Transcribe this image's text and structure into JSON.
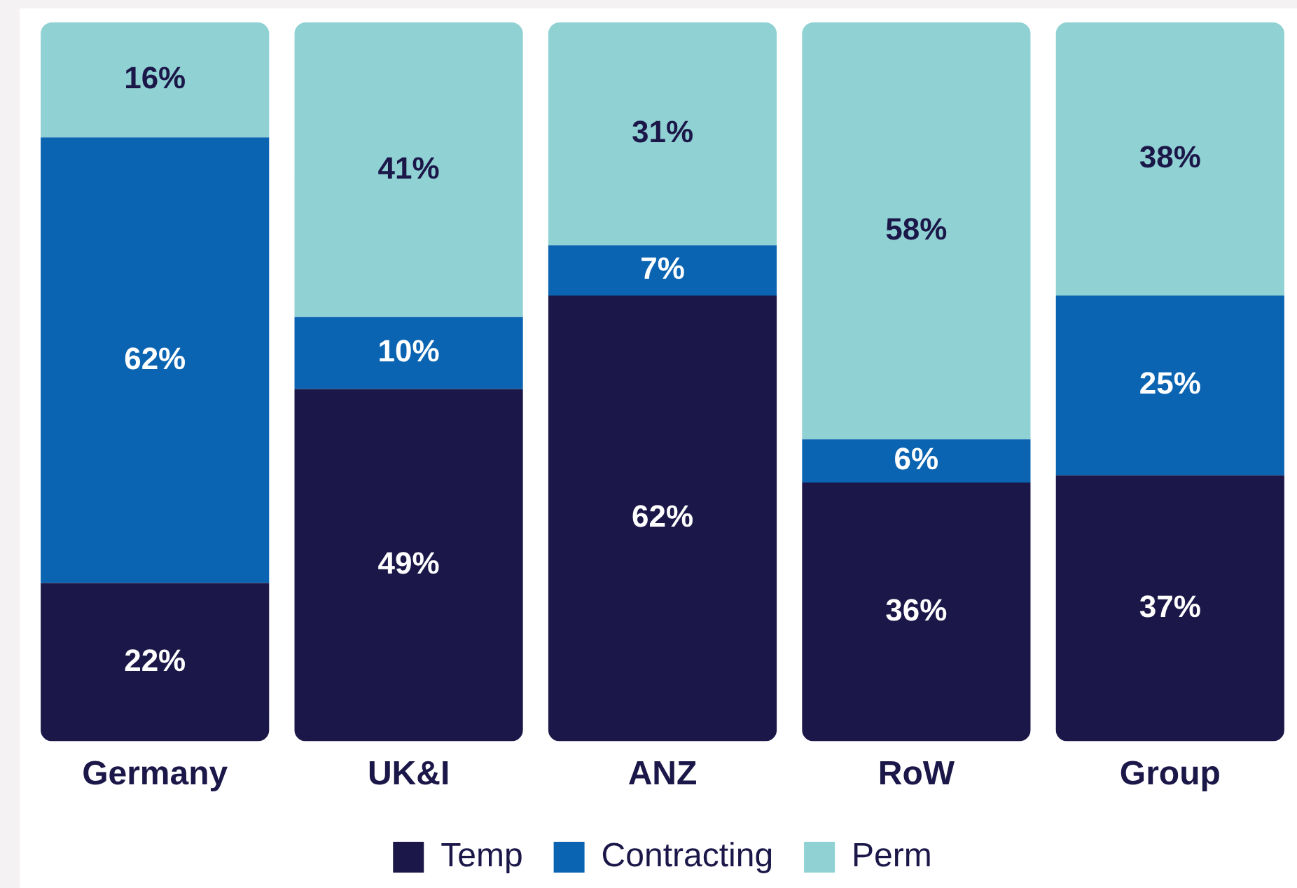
{
  "chart_data": {
    "type": "bar",
    "stacked": true,
    "legend": "bottom",
    "grid": false,
    "categories": [
      "Germany",
      "UK&I",
      "ANZ",
      "RoW",
      "Group"
    ],
    "series": [
      {
        "name": "Temp",
        "color": "#1b1748",
        "values": [
          22,
          49,
          62,
          36,
          37
        ],
        "value_labels": [
          "22%",
          "49%",
          "62%",
          "36%",
          "37%"
        ]
      },
      {
        "name": "Contracting",
        "color": "#0b64b2",
        "values": [
          62,
          10,
          7,
          6,
          25
        ],
        "value_labels": [
          "62%",
          "10%",
          "7%",
          "6%",
          "25%"
        ]
      },
      {
        "name": "Perm",
        "color": "#90d1d3",
        "values": [
          16,
          41,
          31,
          58,
          38
        ],
        "value_labels": [
          "16%",
          "41%",
          "31%",
          "58%",
          "38%"
        ]
      }
    ]
  }
}
